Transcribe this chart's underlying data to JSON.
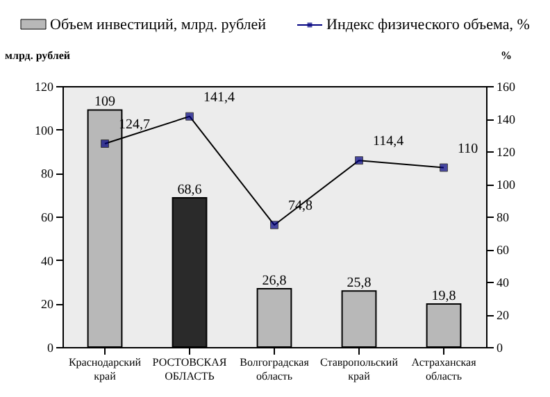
{
  "chart_data": {
    "type": "bar",
    "categories": [
      "Краснодарский край",
      "РОСТОВСКАЯ ОБЛАСТЬ",
      "Волгоградская область",
      "Ставропольский край",
      "Астраханская область"
    ],
    "series": [
      {
        "name": "Объем инвестиций, млрд. рублей",
        "colors": [
          "#b8b8b8",
          "#2a2a2a",
          "#b8b8b8",
          "#b8b8b8",
          "#b8b8b8"
        ],
        "values": [
          109,
          68.6,
          26.8,
          25.8,
          19.8
        ],
        "value_labels": [
          "109",
          "68,6",
          "26,8",
          "25,8",
          "19,8"
        ]
      },
      {
        "name": "Индекс физического объема, %",
        "type": "line",
        "axis": "y2",
        "color": "#000080",
        "values": [
          124.7,
          141.4,
          74.8,
          114.4,
          110
        ],
        "value_labels": [
          "124,7",
          "141,4",
          "74,8",
          "114,4",
          "110"
        ]
      }
    ],
    "ylabel": "млрд. рублей",
    "y2label": "%",
    "ylim": [
      0,
      120
    ],
    "yticks": [
      0,
      20,
      40,
      60,
      80,
      100,
      120
    ],
    "y2lim": [
      0,
      160
    ],
    "y2ticks": [
      0,
      20,
      40,
      60,
      80,
      100,
      120,
      140,
      160
    ],
    "legend": "top",
    "grid": false,
    "marker": "square"
  }
}
